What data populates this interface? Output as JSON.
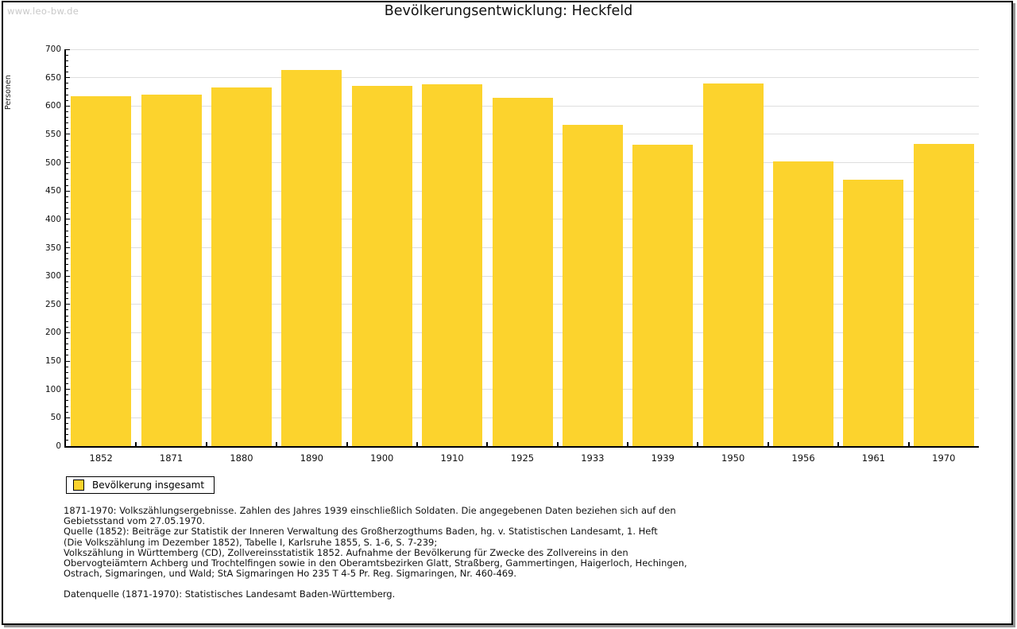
{
  "watermark": "www.leo-bw.de",
  "title": "Bevölkerungsentwicklung: Heckfeld",
  "legend": {
    "label": "Bevölkerung insgesamt",
    "swatch_color": "#FCD32D"
  },
  "colors": {
    "bar": "#FCD32D",
    "grid": "#DEDEDE",
    "axis": "#000000",
    "watermark": "#C9C9C9",
    "frame_border": "#000000",
    "frame_shadow": "#949494"
  },
  "chart_data": {
    "type": "bar",
    "title": "Bevölkerungsentwicklung: Heckfeld",
    "categories": [
      "1852",
      "1871",
      "1880",
      "1890",
      "1900",
      "1910",
      "1925",
      "1933",
      "1939",
      "1950",
      "1956",
      "1961",
      "1970"
    ],
    "values": [
      617,
      620,
      633,
      664,
      635,
      638,
      614,
      567,
      531,
      639,
      502,
      470,
      533
    ],
    "series_name": "Bevölkerung insgesamt",
    "xlabel": "",
    "ylabel": "Personen",
    "ylim": [
      0,
      700
    ],
    "ytick_step": 50,
    "yminor_tick_step": 10,
    "grid": true,
    "legend_position": "bottom-left",
    "bar_color": "#FCD32D"
  },
  "footnotes": [
    "1871-1970: Volkszählungsergebnisse. Zahlen des Jahres 1939 einschließlich Soldaten. Die angegebenen Daten beziehen sich auf den",
    "Gebietsstand vom 27.05.1970.",
    "Quelle (1852): Beiträge zur Statistik der Inneren Verwaltung des Großherzogthums Baden, hg. v. Statistischen Landesamt, 1. Heft",
    "(Die Volkszählung im Dezember 1852), Tabelle I, Karlsruhe 1855, S. 1-6, S. 7-239;",
    "Volkszählung in Württemberg (CD), Zollvereinsstatistik 1852. Aufnahme der Bevölkerung für Zwecke des Zollvereins in den",
    "Obervogteiämtern Achberg und Trochtelfingen sowie in den Oberamtsbezirken Glatt, Straßberg, Gammertingen, Haigerloch, Hechingen,",
    "Ostrach, Sigmaringen, und Wald; StA Sigmaringen Ho 235 T 4-5 Pr. Reg. Sigmaringen, Nr. 460-469."
  ],
  "datasource": "Datenquelle (1871-1970): Statistisches Landesamt Baden-Württemberg."
}
